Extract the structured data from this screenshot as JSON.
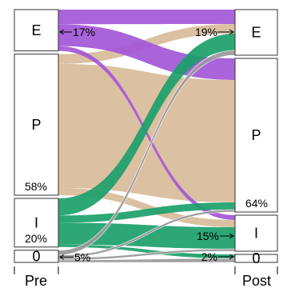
{
  "chart_data": {
    "type": "sankey",
    "axes": [
      {
        "name": "Pre",
        "label": "Pre"
      },
      {
        "name": "Post",
        "label": "Post"
      }
    ],
    "nodes": {
      "pre": [
        {
          "name": "E",
          "label": "E"
        },
        {
          "name": "P",
          "label": "P"
        },
        {
          "name": "I",
          "label": "I"
        },
        {
          "name": "0",
          "label": "0"
        }
      ],
      "post": [
        {
          "name": "E",
          "label": "E"
        },
        {
          "name": "P",
          "label": "P"
        },
        {
          "name": "I",
          "label": "I"
        },
        {
          "name": "0",
          "label": "0"
        }
      ]
    },
    "percent_labels": [
      {
        "id": "pre-E",
        "text": "17%"
      },
      {
        "id": "pre-P",
        "text": "58%"
      },
      {
        "id": "pre-I",
        "text": "20%"
      },
      {
        "id": "pre-0",
        "text": "5%"
      },
      {
        "id": "post-E",
        "text": "19%"
      },
      {
        "id": "post-P",
        "text": "64%"
      },
      {
        "id": "post-I",
        "text": "15%"
      },
      {
        "id": "post-0",
        "text": "2%"
      }
    ],
    "colors": {
      "E": "#a357d7",
      "P": "#dcc0a2",
      "I": "#1ba06a",
      "0": "#999999"
    },
    "flows": [
      {
        "from": "E",
        "to": "E",
        "value": 6
      },
      {
        "from": "E",
        "to": "P",
        "value": 9
      },
      {
        "from": "E",
        "to": "I",
        "value": 2
      },
      {
        "from": "P",
        "to": "E",
        "value": 4
      },
      {
        "from": "P",
        "to": "P",
        "value": 51
      },
      {
        "from": "P",
        "to": "I",
        "value": 3
      },
      {
        "from": "I",
        "to": "E",
        "value": 7
      },
      {
        "from": "I",
        "to": "P",
        "value": 3
      },
      {
        "from": "I",
        "to": "I",
        "value": 9
      },
      {
        "from": "I",
        "to": "0",
        "value": 1
      },
      {
        "from": "0",
        "to": "E",
        "value": 2
      },
      {
        "from": "0",
        "to": "P",
        "value": 1
      },
      {
        "from": "0",
        "to": "I",
        "value": 1
      },
      {
        "from": "0",
        "to": "0",
        "value": 1
      }
    ]
  }
}
